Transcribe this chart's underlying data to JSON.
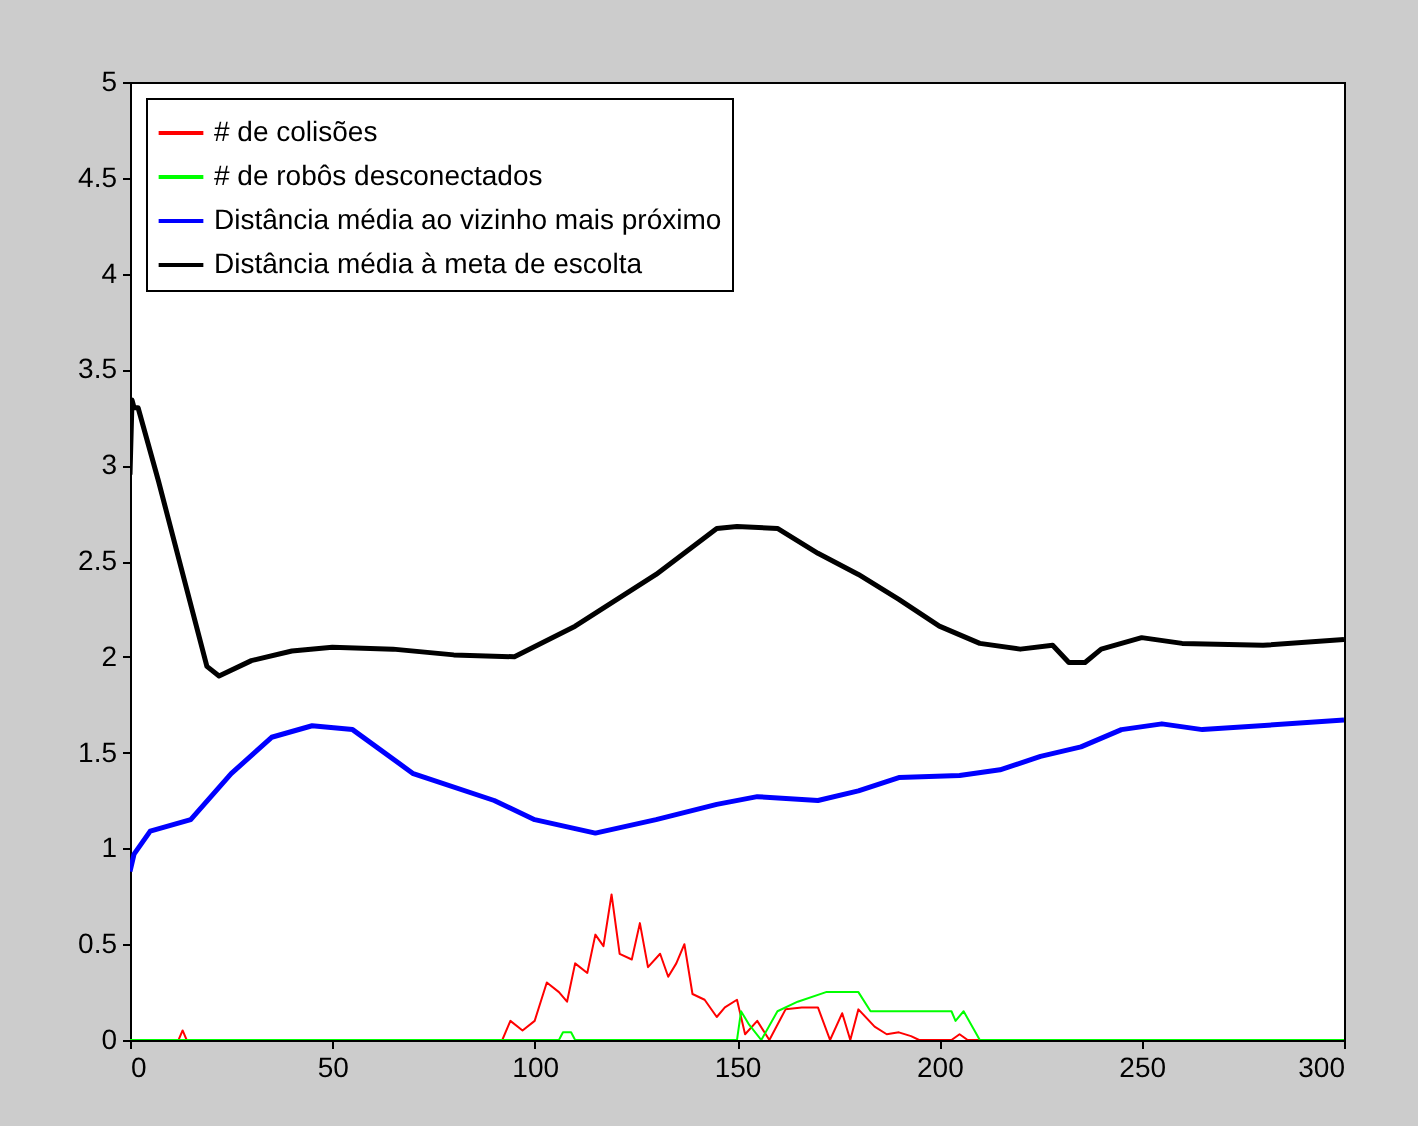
{
  "chart_data": {
    "type": "line",
    "legend": "top left",
    "grid": false,
    "xlim": [
      0,
      300
    ],
    "ylim": [
      0,
      5
    ],
    "xticks": [
      0,
      50,
      100,
      150,
      200,
      250,
      300
    ],
    "yticks": [
      0,
      0.5,
      1,
      1.5,
      2,
      2.5,
      3,
      3.5,
      4,
      4.5,
      5
    ],
    "series": [
      {
        "name": "# de colisões",
        "color": "#ff0000",
        "x": [
          0,
          12,
          13,
          14,
          92,
          94,
          97,
          100,
          103,
          106,
          108,
          110,
          113,
          115,
          117,
          119,
          121,
          124,
          126,
          128,
          131,
          133,
          135,
          137,
          139,
          142,
          145,
          147,
          150,
          152,
          155,
          158,
          162,
          166,
          170,
          173,
          176,
          178,
          180,
          184,
          187,
          190,
          193,
          195,
          203,
          205,
          207,
          300
        ],
        "values": [
          0,
          0,
          0.05,
          0,
          0,
          0.1,
          0.05,
          0.1,
          0.3,
          0.25,
          0.2,
          0.4,
          0.35,
          0.55,
          0.49,
          0.76,
          0.45,
          0.42,
          0.61,
          0.38,
          0.45,
          0.33,
          0.4,
          0.5,
          0.24,
          0.21,
          0.12,
          0.17,
          0.21,
          0.03,
          0.1,
          0,
          0.16,
          0.17,
          0.17,
          0,
          0.14,
          0,
          0.16,
          0.07,
          0.03,
          0.04,
          0.02,
          0,
          0,
          0.03,
          0,
          0
        ]
      },
      {
        "name": "# de robôs desconectados",
        "color": "#00ff00",
        "x": [
          0,
          106,
          107,
          109,
          110,
          150,
          151,
          153,
          156,
          160,
          165,
          172,
          180,
          183,
          203,
          204,
          206,
          210,
          300
        ],
        "values": [
          0,
          0,
          0.04,
          0.04,
          0,
          0,
          0.15,
          0.08,
          0,
          0.15,
          0.2,
          0.25,
          0.25,
          0.15,
          0.15,
          0.1,
          0.15,
          0,
          0
        ]
      },
      {
        "name": "Distância média ao vizinho mais próximo",
        "color": "#0000ff",
        "x": [
          0,
          1,
          5,
          15,
          25,
          35,
          45,
          55,
          70,
          90,
          100,
          115,
          130,
          145,
          155,
          170,
          180,
          190,
          205,
          215,
          225,
          235,
          245,
          255,
          265,
          300
        ],
        "values": [
          0.88,
          0.97,
          1.09,
          1.15,
          1.39,
          1.58,
          1.64,
          1.62,
          1.39,
          1.25,
          1.15,
          1.08,
          1.15,
          1.23,
          1.27,
          1.25,
          1.3,
          1.37,
          1.38,
          1.41,
          1.48,
          1.53,
          1.62,
          1.65,
          1.62,
          1.67
        ]
      },
      {
        "name": "Distância média à meta de escolta",
        "color": "#000000",
        "x": [
          0,
          0.5,
          1,
          2,
          7,
          19,
          22,
          30,
          40,
          50,
          65,
          80,
          95,
          110,
          130,
          145,
          150,
          160,
          170,
          180,
          190,
          200,
          210,
          220,
          228,
          232,
          236,
          240,
          250,
          260,
          280,
          300
        ],
        "values": [
          2.95,
          3.34,
          3.3,
          3.3,
          2.92,
          1.95,
          1.9,
          1.98,
          2.03,
          2.05,
          2.04,
          2.01,
          2.0,
          2.16,
          2.43,
          2.67,
          2.68,
          2.67,
          2.54,
          2.43,
          2.3,
          2.16,
          2.07,
          2.04,
          2.06,
          1.97,
          1.97,
          2.04,
          2.1,
          2.07,
          2.06,
          2.09
        ]
      }
    ]
  }
}
